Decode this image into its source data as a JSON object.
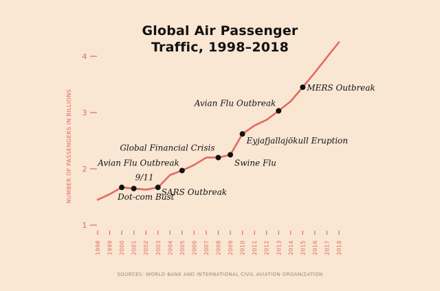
{
  "title_line1": "Global Air Passenger",
  "title_line2": "Traffic, 1998–2018",
  "source": "SOURCES: WORLD BANK AND INTERNATIONAL CIVIL AVIATION ORGANIZATION",
  "colors": {
    "background": "#f9e6d3",
    "line": "#e06a5f",
    "axis": "#e06a5f",
    "marker": "#111111",
    "text": "#111111"
  },
  "chart_data": {
    "type": "line",
    "title": "Global Air Passenger Traffic, 1998–2018",
    "xlabel": "",
    "ylabel": "NUMBER OF PASSENGERS IN BILLIONS",
    "xlim": [
      1998,
      2018
    ],
    "ylim": [
      1,
      4
    ],
    "yticks": [
      "1",
      "2",
      "3",
      "4"
    ],
    "xticks": [
      "1998",
      "1999",
      "2000",
      "2001",
      "2002",
      "2003",
      "2004",
      "2005",
      "2006",
      "2007",
      "2008",
      "2009",
      "2010",
      "2011",
      "2012",
      "2013",
      "2014",
      "2015",
      "2016",
      "2017",
      "2018"
    ],
    "grid": false,
    "series": [
      {
        "x": [
          1998,
          1999,
          2000,
          2001,
          2002,
          2003,
          2004,
          2005,
          2006,
          2007,
          2008,
          2009,
          2010,
          2011,
          2012,
          2013,
          2014,
          2015,
          2016,
          2017,
          2018
        ],
        "y": [
          1.45,
          1.55,
          1.67,
          1.65,
          1.63,
          1.67,
          1.89,
          1.97,
          2.07,
          2.2,
          2.2,
          2.25,
          2.62,
          2.77,
          2.87,
          3.03,
          3.2,
          3.45,
          3.71,
          3.98,
          4.25
        ]
      }
    ],
    "annotations": [
      {
        "text": "Dot-com Bust",
        "x": 2000,
        "y": 1.67,
        "marker": true
      },
      {
        "text": "9/11",
        "x": 2001,
        "y": 1.65,
        "marker": true
      },
      {
        "text": "SARS Outbreak",
        "x": 2003,
        "y": 1.67,
        "marker": true
      },
      {
        "text": "Avian Flu Outbreak",
        "x": 2005,
        "y": 1.97,
        "marker": true
      },
      {
        "text": "Global Financial Crisis",
        "x": 2008,
        "y": 2.2,
        "marker": true
      },
      {
        "text": "Swine Flu",
        "x": 2009,
        "y": 2.25,
        "marker": true
      },
      {
        "text": "Eyjafjallajökull Eruption",
        "x": 2010,
        "y": 2.62,
        "marker": true
      },
      {
        "text": "Avian Flu Outbreak",
        "x": 2013,
        "y": 3.03,
        "marker": true
      },
      {
        "text": "MERS Outbreak",
        "x": 2015,
        "y": 3.45,
        "marker": true
      }
    ]
  }
}
